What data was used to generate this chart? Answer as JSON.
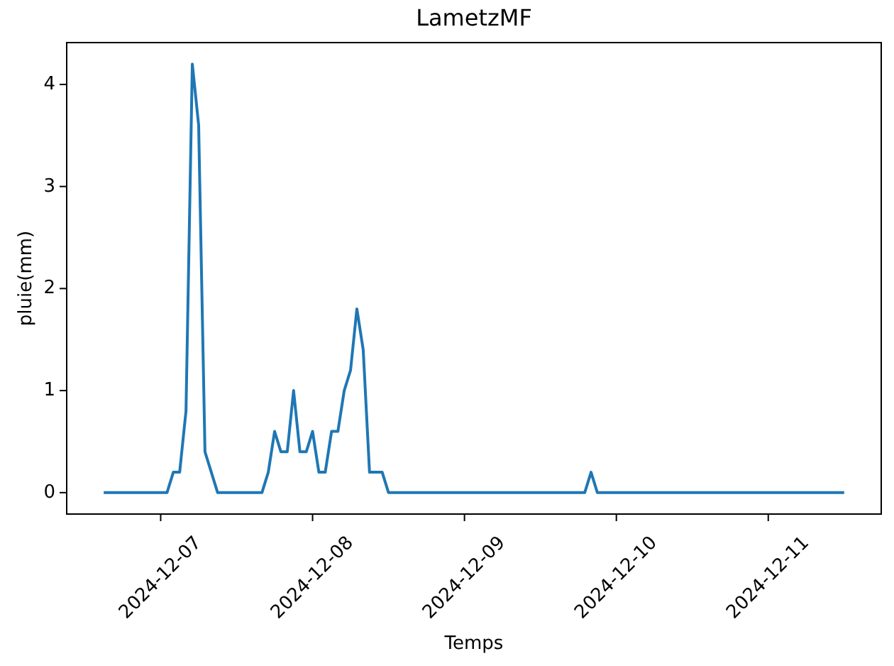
{
  "chart_data": {
    "type": "line",
    "title": "LametzMF",
    "xlabel": "Temps",
    "ylabel": "pluie(mm)",
    "x": [
      "2024-12-06T15:00",
      "2024-12-07T01:00",
      "2024-12-07T02:00",
      "2024-12-07T03:00",
      "2024-12-07T04:00",
      "2024-12-07T05:00",
      "2024-12-07T06:00",
      "2024-12-07T07:00",
      "2024-12-07T08:00",
      "2024-12-07T09:00",
      "2024-12-07T16:00",
      "2024-12-07T17:00",
      "2024-12-07T18:00",
      "2024-12-07T19:00",
      "2024-12-07T20:00",
      "2024-12-07T21:00",
      "2024-12-07T22:00",
      "2024-12-07T23:00",
      "2024-12-08T00:00",
      "2024-12-08T01:00",
      "2024-12-08T02:00",
      "2024-12-08T03:00",
      "2024-12-08T04:00",
      "2024-12-08T05:00",
      "2024-12-08T06:00",
      "2024-12-08T07:00",
      "2024-12-08T08:00",
      "2024-12-08T09:00",
      "2024-12-08T10:00",
      "2024-12-08T11:00",
      "2024-12-08T12:00",
      "2024-12-09T19:00",
      "2024-12-09T20:00",
      "2024-12-09T21:00",
      "2024-12-11T12:00"
    ],
    "values": [
      0,
      0,
      0.2,
      0.2,
      0.8,
      4.2,
      3.6,
      0.4,
      0.2,
      0,
      0,
      0.2,
      0.6,
      0.4,
      0.4,
      1,
      0.4,
      0.4,
      0.6,
      0.2,
      0.2,
      0.6,
      0.6,
      1,
      1.2,
      1.8,
      1.4,
      0.2,
      0.2,
      0.2,
      0,
      0,
      0.2,
      0,
      0
    ],
    "color": "#1f77b4",
    "xlim": [
      "2024-12-06T09:09",
      "2024-12-11T17:51"
    ],
    "ylim": [
      -0.21,
      4.41
    ],
    "xticks": [
      "2024-12-07",
      "2024-12-08",
      "2024-12-09",
      "2024-12-10",
      "2024-12-11"
    ],
    "yticks": [
      0,
      1,
      2,
      3,
      4
    ]
  }
}
